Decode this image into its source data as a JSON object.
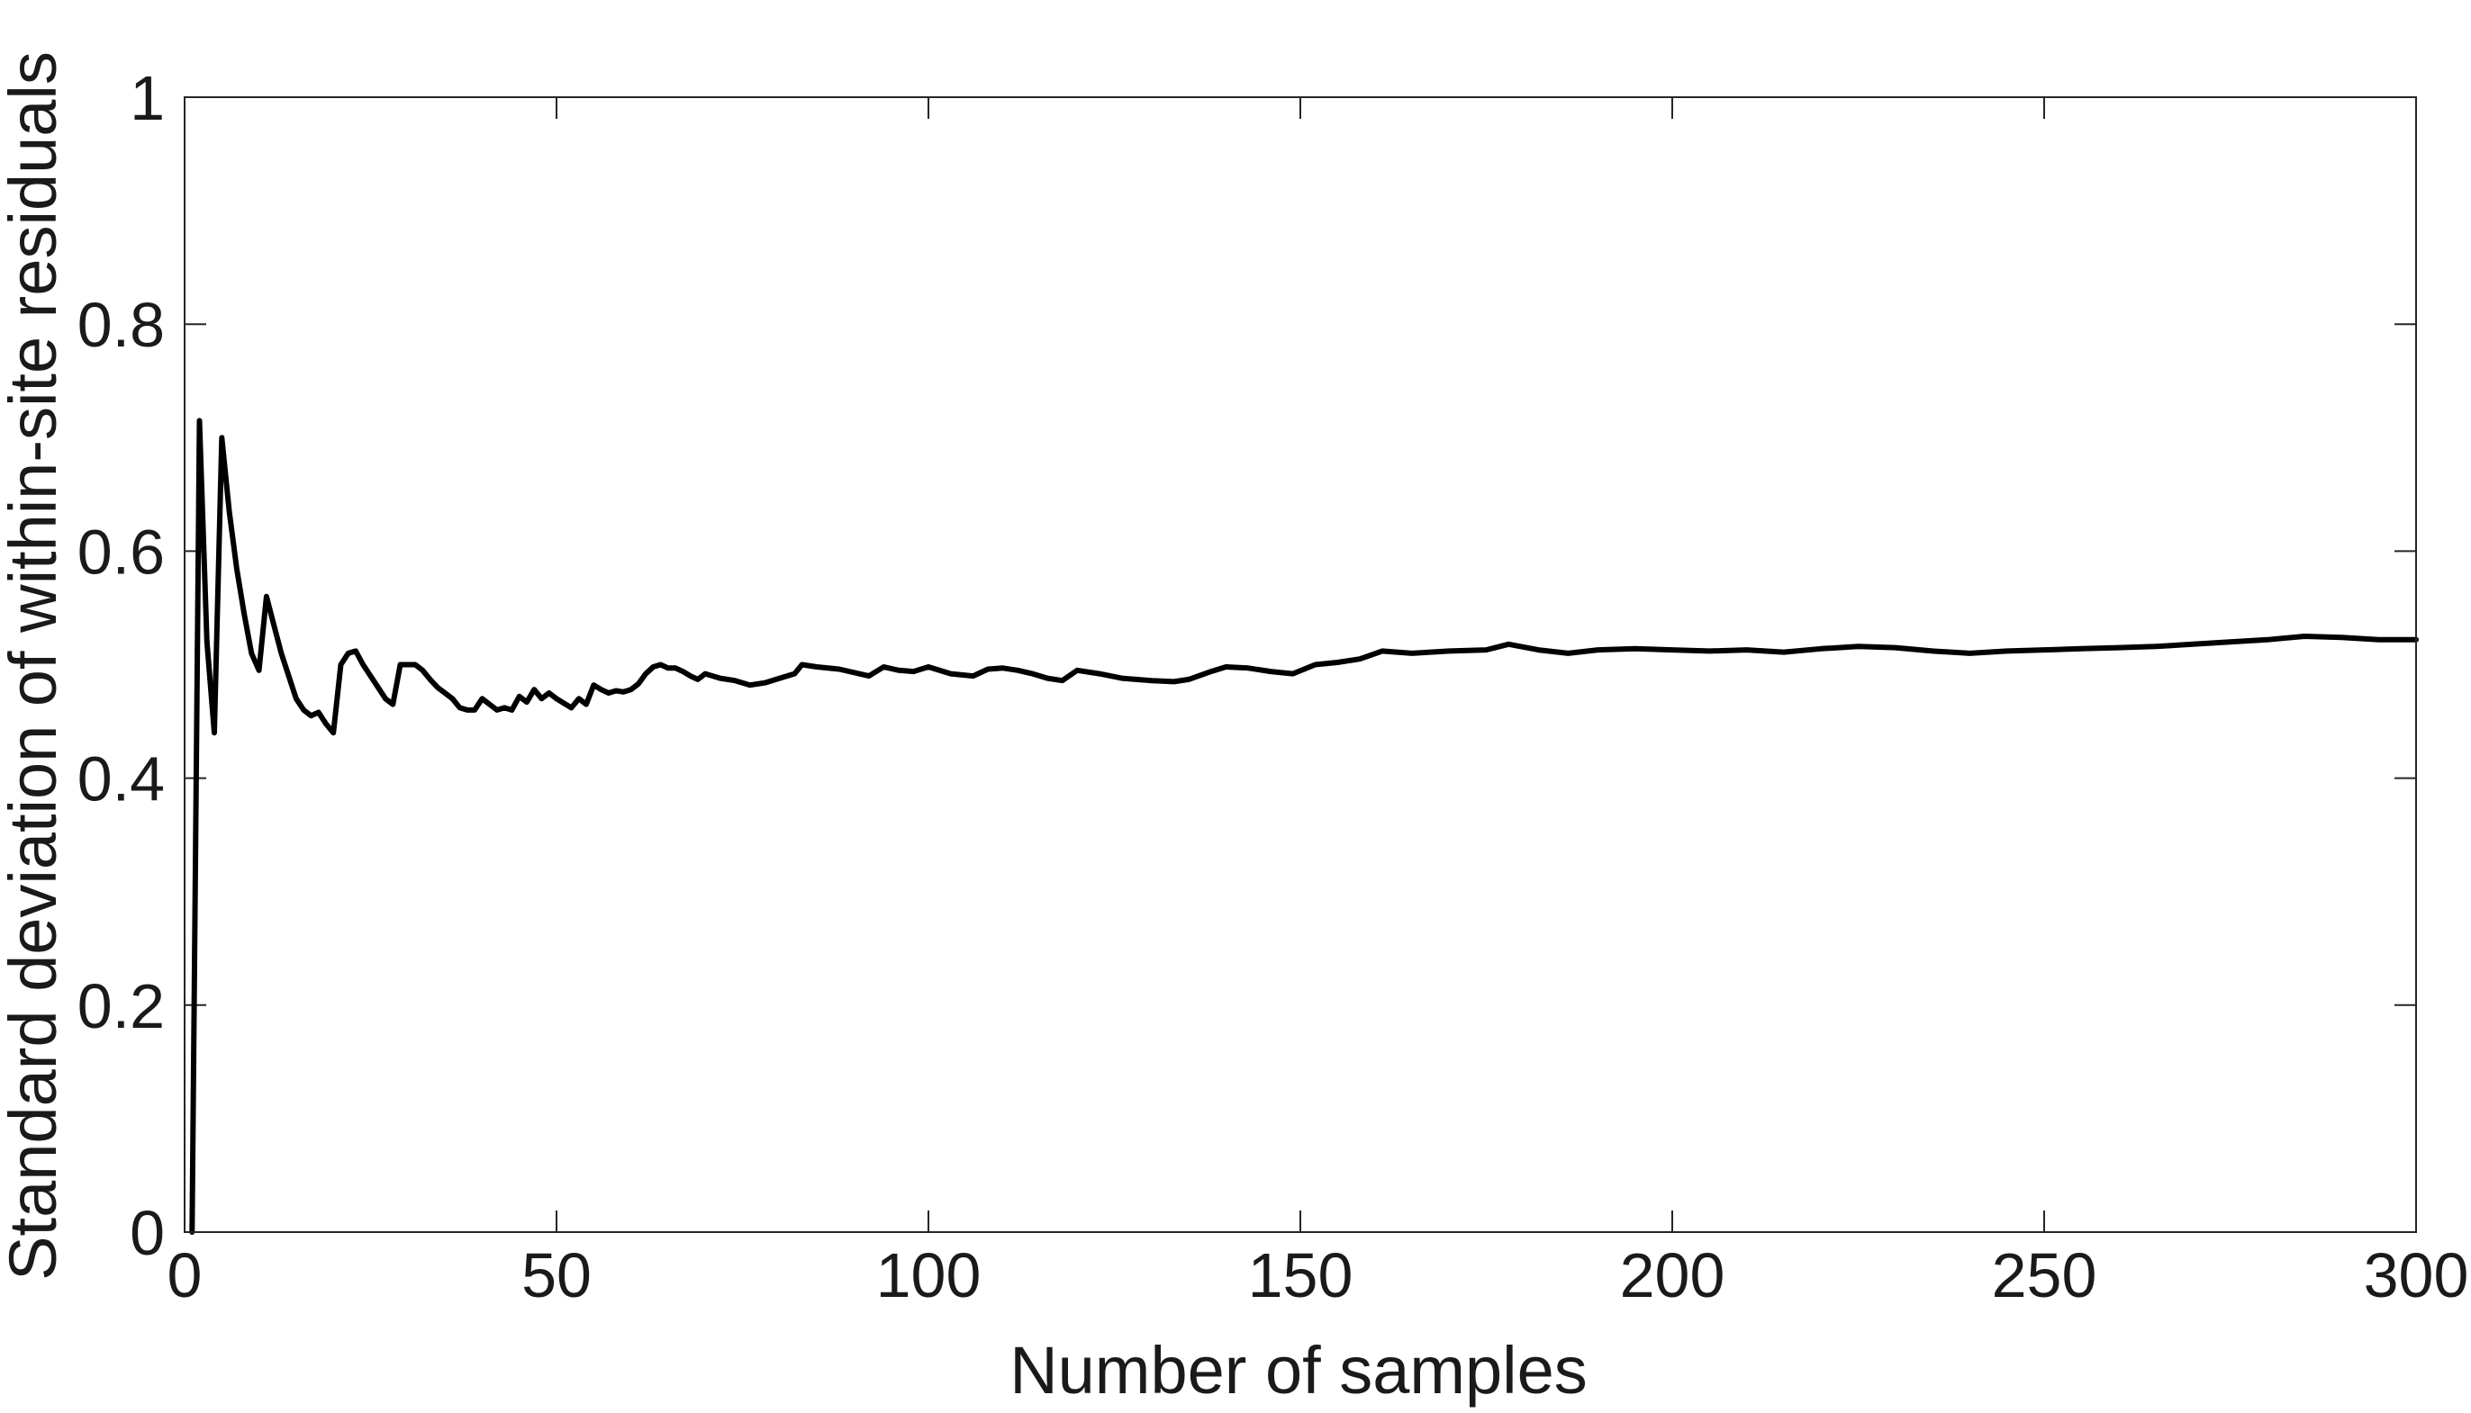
{
  "chart_data": {
    "type": "line",
    "title": "",
    "xlabel": "Number of samples",
    "ylabel": "Standard deviation of within-site residuals",
    "xlim": [
      0,
      300
    ],
    "ylim": [
      0,
      1
    ],
    "xticks": [
      0,
      50,
      100,
      150,
      200,
      250,
      300
    ],
    "yticks": [
      0,
      0.2,
      0.4,
      0.6,
      0.8,
      1
    ],
    "xtick_labels": [
      "0",
      "50",
      "100",
      "150",
      "200",
      "250",
      "300"
    ],
    "ytick_labels": [
      "0",
      "0.2",
      "0.4",
      "0.6",
      "0.8",
      "1"
    ],
    "grid": false,
    "box": true,
    "colors": {
      "line": "#000000",
      "axes": "#262626",
      "text": "#1a1a1a"
    },
    "series": [
      {
        "x": [
          1,
          2,
          3,
          4,
          5,
          6,
          7,
          8,
          9,
          10,
          11,
          12,
          13,
          14,
          15,
          16,
          17,
          18,
          19,
          20,
          21,
          22,
          23,
          24,
          25,
          26,
          27,
          28,
          29,
          30,
          31,
          32,
          33,
          34,
          35,
          36,
          37,
          38,
          39,
          40,
          41,
          42,
          43,
          44,
          45,
          46,
          47,
          48,
          49,
          50,
          51,
          52,
          53,
          54,
          55,
          56,
          57,
          58,
          59,
          60,
          61,
          62,
          63,
          64,
          65,
          66,
          67,
          68,
          69,
          70,
          72,
          74,
          76,
          78,
          80,
          82,
          83,
          85,
          88,
          92,
          94,
          96,
          98,
          100,
          103,
          106,
          108,
          110,
          112,
          114,
          116,
          118,
          120,
          123,
          126,
          130,
          133,
          135,
          138,
          140,
          143,
          146,
          149,
          152,
          155,
          158,
          161,
          165,
          170,
          175,
          178,
          182,
          186,
          190,
          195,
          200,
          205,
          210,
          215,
          220,
          225,
          230,
          235,
          240,
          245,
          250,
          255,
          260,
          265,
          270,
          275,
          280,
          285,
          290,
          295,
          300
        ],
        "y": [
          0.0,
          0.715,
          0.52,
          0.44,
          0.7,
          0.635,
          0.585,
          0.545,
          0.51,
          0.495,
          0.56,
          0.535,
          0.51,
          0.49,
          0.47,
          0.46,
          0.455,
          0.458,
          0.448,
          0.44,
          0.5,
          0.51,
          0.512,
          0.5,
          0.49,
          0.48,
          0.47,
          0.465,
          0.5,
          0.5,
          0.5,
          0.495,
          0.487,
          0.48,
          0.475,
          0.47,
          0.462,
          0.46,
          0.46,
          0.47,
          0.465,
          0.46,
          0.462,
          0.46,
          0.472,
          0.467,
          0.478,
          0.47,
          0.475,
          0.47,
          0.466,
          0.462,
          0.47,
          0.465,
          0.482,
          0.478,
          0.475,
          0.477,
          0.476,
          0.478,
          0.483,
          0.492,
          0.498,
          0.5,
          0.497,
          0.497,
          0.494,
          0.49,
          0.487,
          0.492,
          0.488,
          0.486,
          0.482,
          0.484,
          0.488,
          0.492,
          0.5,
          0.498,
          0.496,
          0.49,
          0.498,
          0.495,
          0.494,
          0.498,
          0.492,
          0.49,
          0.496,
          0.497,
          0.495,
          0.492,
          0.488,
          0.486,
          0.495,
          0.492,
          0.488,
          0.486,
          0.485,
          0.487,
          0.494,
          0.498,
          0.497,
          0.494,
          0.492,
          0.5,
          0.502,
          0.505,
          0.512,
          0.51,
          0.512,
          0.513,
          0.518,
          0.513,
          0.51,
          0.513,
          0.514,
          0.513,
          0.512,
          0.513,
          0.511,
          0.514,
          0.516,
          0.515,
          0.512,
          0.51,
          0.512,
          0.513,
          0.514,
          0.515,
          0.516,
          0.518,
          0.52,
          0.522,
          0.525,
          0.524,
          0.522,
          0.522
        ]
      }
    ]
  }
}
